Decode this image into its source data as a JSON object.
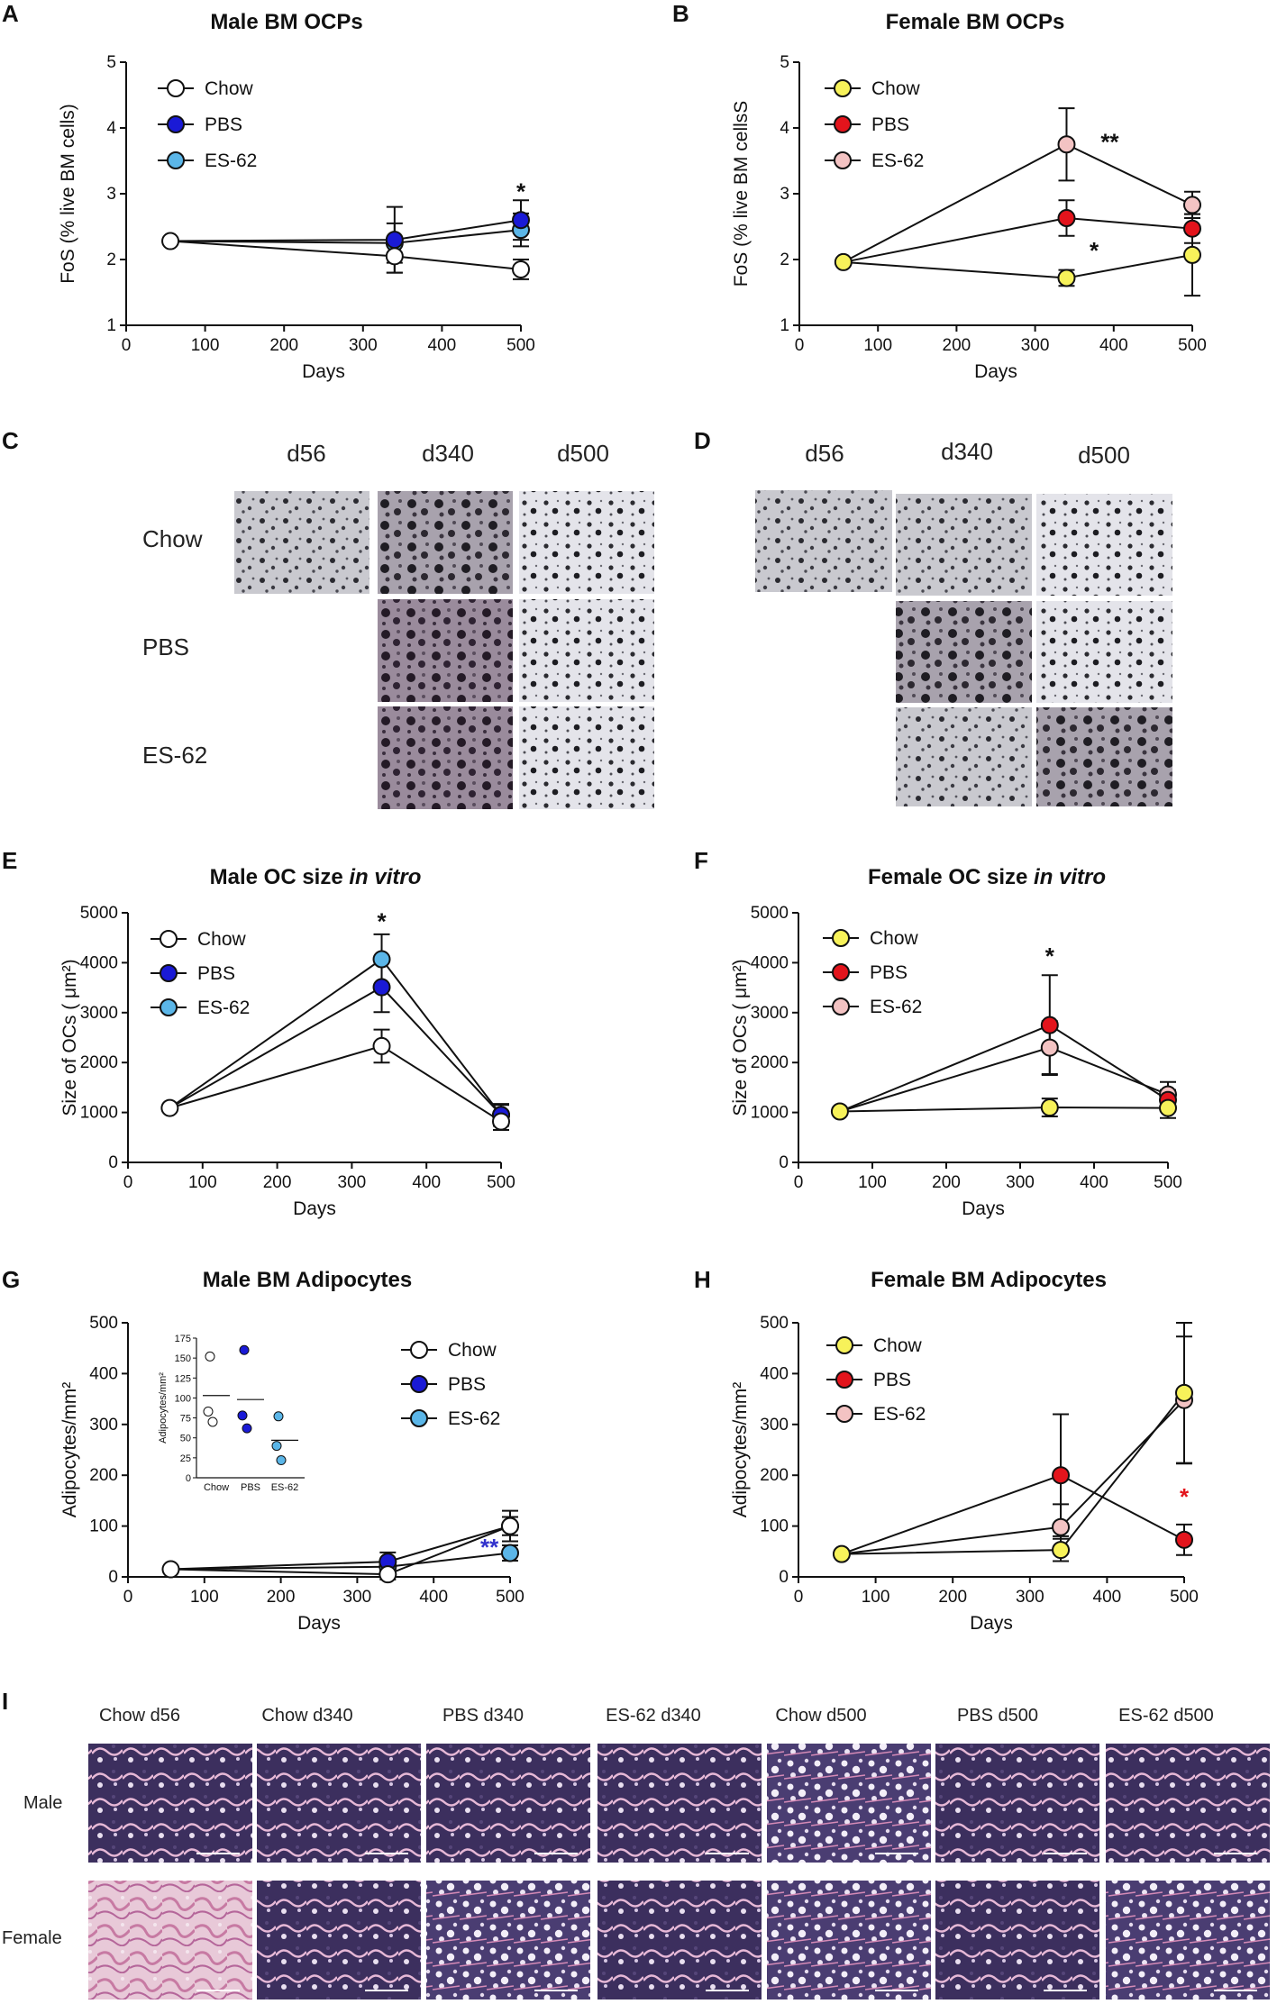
{
  "panel_letters": {
    "A": "A",
    "B": "B",
    "C": "C",
    "D": "D",
    "E": "E",
    "F": "F",
    "G": "G",
    "H": "H",
    "I": "I"
  },
  "colors": {
    "Chow_male": "#ffffff",
    "PBS_male": "#1a1ad6",
    "ES62_male": "#5bb6e8",
    "Chow_female": "#f7f25a",
    "PBS_female": "#e3141c",
    "ES62_female": "#f3c3c3",
    "blue_star": "#3333cc",
    "red_star": "#e3141c"
  },
  "chart_data": [
    {
      "id": "A",
      "type": "line",
      "title": "Male BM OCPs",
      "xlabel": "Days",
      "ylabel": "FoS (% live BM cells)",
      "xlim": [
        0,
        500
      ],
      "ylim": [
        1,
        5
      ],
      "xticks": [
        0,
        100,
        200,
        300,
        400,
        500
      ],
      "yticks": [
        1,
        2,
        3,
        4,
        5
      ],
      "x": [
        56,
        340,
        500
      ],
      "series": [
        {
          "name": "Chow",
          "values": [
            2.28,
            2.05,
            1.85
          ],
          "err": [
            null,
            0.25,
            0.15
          ]
        },
        {
          "name": "PBS",
          "values": [
            null,
            2.3,
            2.6
          ],
          "err": [
            null,
            0.5,
            0.3
          ]
        },
        {
          "name": "ES-62",
          "values": [
            null,
            2.25,
            2.45
          ],
          "err": [
            null,
            0.3,
            0.25
          ]
        }
      ],
      "annotations": [
        {
          "text": "*",
          "x": 500,
          "y": 3.05
        }
      ]
    },
    {
      "id": "B",
      "type": "line",
      "title": "Female BM OCPs",
      "xlabel": "Days",
      "ylabel": "FoS (% live BM cellsS",
      "xlim": [
        0,
        500
      ],
      "ylim": [
        1,
        5
      ],
      "xticks": [
        0,
        100,
        200,
        300,
        400,
        500
      ],
      "yticks": [
        1,
        2,
        3,
        4,
        5
      ],
      "x": [
        56,
        340,
        500
      ],
      "series": [
        {
          "name": "Chow",
          "values": [
            1.96,
            1.72,
            2.07
          ],
          "err": [
            null,
            0.12,
            0.62
          ]
        },
        {
          "name": "PBS",
          "values": [
            null,
            2.63,
            2.47
          ],
          "err": [
            null,
            0.27,
            0.22
          ]
        },
        {
          "name": "ES-62",
          "values": [
            null,
            3.75,
            2.83
          ],
          "err": [
            null,
            0.55,
            0.2
          ]
        }
      ],
      "annotations": [
        {
          "text": "**",
          "x": 395,
          "y": 3.8
        },
        {
          "text": "*",
          "x": 375,
          "y": 2.15
        }
      ]
    },
    {
      "id": "E",
      "type": "line",
      "title": "Male OC size",
      "title_italic": "in vitro",
      "xlabel": "Days",
      "ylabel": "Size of OCs ( μm²)",
      "xlim": [
        0,
        500
      ],
      "ylim": [
        0,
        5000
      ],
      "xticks": [
        0,
        100,
        200,
        300,
        400,
        500
      ],
      "yticks": [
        0,
        1000,
        2000,
        3000,
        4000,
        5000
      ],
      "x": [
        56,
        340,
        500
      ],
      "series": [
        {
          "name": "Chow",
          "values": [
            1090,
            2330,
            820
          ],
          "err": [
            null,
            330,
            170
          ]
        },
        {
          "name": "PBS",
          "values": [
            null,
            3510,
            950
          ],
          "err": [
            null,
            500,
            220
          ]
        },
        {
          "name": "ES-62",
          "values": [
            null,
            4070,
            950
          ],
          "err": [
            null,
            500,
            200
          ]
        }
      ],
      "annotations": [
        {
          "text": "*",
          "x": 340,
          "y": 4850
        }
      ]
    },
    {
      "id": "F",
      "type": "line",
      "title": "Female OC size",
      "title_italic": "in vitro",
      "xlabel": "Days",
      "ylabel": "Size of OCs ( μm²)",
      "xlim": [
        0,
        500
      ],
      "ylim": [
        0,
        5000
      ],
      "xticks": [
        0,
        100,
        200,
        300,
        400,
        500
      ],
      "yticks": [
        0,
        1000,
        2000,
        3000,
        4000,
        5000
      ],
      "x": [
        56,
        340,
        500
      ],
      "series": [
        {
          "name": "Chow",
          "values": [
            1020,
            1100,
            1090
          ],
          "err": [
            null,
            180,
            200
          ]
        },
        {
          "name": "PBS",
          "values": [
            null,
            2750,
            1250
          ],
          "err": [
            null,
            1000,
            200
          ]
        },
        {
          "name": "ES-62",
          "values": [
            null,
            2300,
            1360
          ],
          "err": [
            null,
            530,
            250
          ]
        }
      ],
      "annotations": [
        {
          "text": "*",
          "x": 340,
          "y": 4150
        }
      ]
    },
    {
      "id": "G",
      "type": "line",
      "title": "Male BM Adipocytes",
      "xlabel": "Days",
      "ylabel": "Adipocytes/mm²",
      "xlim": [
        0,
        500
      ],
      "ylim": [
        0,
        500
      ],
      "xticks": [
        0,
        100,
        200,
        300,
        400,
        500
      ],
      "yticks": [
        0,
        100,
        200,
        300,
        400,
        500
      ],
      "x": [
        56,
        340,
        500
      ],
      "series": [
        {
          "name": "Chow",
          "values": [
            15,
            5,
            100
          ],
          "err": [
            null,
            10,
            18
          ]
        },
        {
          "name": "PBS",
          "values": [
            null,
            30,
            100
          ],
          "err": [
            null,
            18,
            30
          ]
        },
        {
          "name": "ES-62",
          "values": [
            null,
            20,
            47
          ],
          "err": [
            null,
            12,
            15
          ]
        }
      ],
      "annotations": [
        {
          "text": "**",
          "x": 473,
          "y": 60,
          "color": "blue"
        }
      ],
      "inset": {
        "type": "scatter",
        "ylabel": "Adipocytes/mm²",
        "ylim": [
          0,
          175
        ],
        "yticks": [
          0,
          25,
          50,
          75,
          100,
          125,
          150,
          175
        ],
        "categories": [
          "Chow",
          "PBS",
          "ES-62"
        ],
        "points": [
          [
            152,
            83,
            70
          ],
          [
            160,
            78,
            62
          ],
          [
            77,
            40,
            22
          ]
        ],
        "means": [
          103,
          98,
          47
        ]
      }
    },
    {
      "id": "H",
      "type": "line",
      "title": "Female BM Adipocytes",
      "xlabel": "Days",
      "ylabel": "Adipocytes/mm²",
      "xlim": [
        0,
        500
      ],
      "ylim": [
        0,
        500
      ],
      "xticks": [
        0,
        100,
        200,
        300,
        400,
        500
      ],
      "yticks": [
        0,
        100,
        200,
        300,
        400,
        500
      ],
      "x": [
        56,
        340,
        500
      ],
      "series": [
        {
          "name": "Chow",
          "values": [
            45,
            53,
            362
          ],
          "err": [
            null,
            22,
            138
          ]
        },
        {
          "name": "PBS",
          "values": [
            null,
            200,
            73
          ],
          "err": [
            null,
            120,
            30
          ]
        },
        {
          "name": "ES-62",
          "values": [
            null,
            98,
            348
          ],
          "err": [
            null,
            45,
            125
          ]
        }
      ],
      "annotations": [
        {
          "text": "*",
          "x": 500,
          "y": 160,
          "color": "red"
        }
      ]
    }
  ],
  "panelC": {
    "cols": [
      "d56",
      "d340",
      "d500"
    ],
    "rows": [
      "Chow",
      "PBS",
      "ES-62"
    ]
  },
  "panelD": {
    "cols": [
      "d56",
      "d340",
      "d500"
    ]
  },
  "panelI": {
    "cols": [
      "Chow d56",
      "Chow d340",
      "PBS d340",
      "ES-62 d340",
      "Chow d500",
      "PBS d500",
      "ES-62 d500"
    ],
    "rows": [
      "Male",
      "Female"
    ]
  }
}
